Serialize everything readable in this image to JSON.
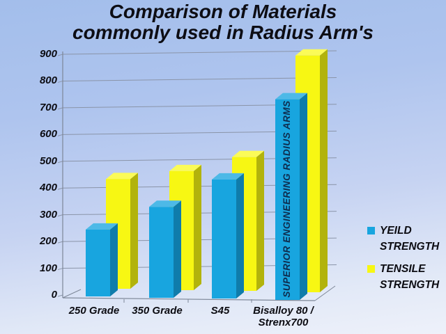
{
  "title": {
    "line1": "Comparison of Materials",
    "line2": "commonly used in Radius Arm's"
  },
  "chart_data": {
    "type": "bar",
    "style": "3d-clustered-column",
    "title": "Comparison of Materials commonly used in Radius Arm's",
    "categories": [
      "250 Grade",
      "350 Grade",
      "S45",
      "Bisalloy 80 /\nStrenx700"
    ],
    "series": [
      {
        "name": "YEILD STRENGTH",
        "color": "#18a5df",
        "side_color": "#0f7cab",
        "top_color": "#4db9e7",
        "values": [
          250,
          340,
          445,
          750
        ]
      },
      {
        "name": "TENSILE STRENGTH",
        "color": "#f7f713",
        "side_color": "#b2b30c",
        "top_color": "#fbfb58",
        "values": [
          410,
          445,
          500,
          885
        ]
      }
    ],
    "ylim": [
      0,
      900
    ],
    "y_ticks": [
      0,
      100,
      200,
      300,
      400,
      500,
      600,
      700,
      800,
      900
    ],
    "grid": true,
    "legend_position": "right",
    "bar_annotation": {
      "text": "SUPERIOR ENGINEERING RADIUS ARMS",
      "series": "YEILD STRENGTH",
      "category": "Bisalloy 80 /\nStrenx700"
    }
  },
  "colors": {
    "background_top": "#a3beeb",
    "background_bottom": "#eef1fa",
    "gridline": "#8a94a8",
    "axis": "#7d8798",
    "text": "#0c0c12",
    "bar_annotation_text": "#0e2c4e"
  }
}
